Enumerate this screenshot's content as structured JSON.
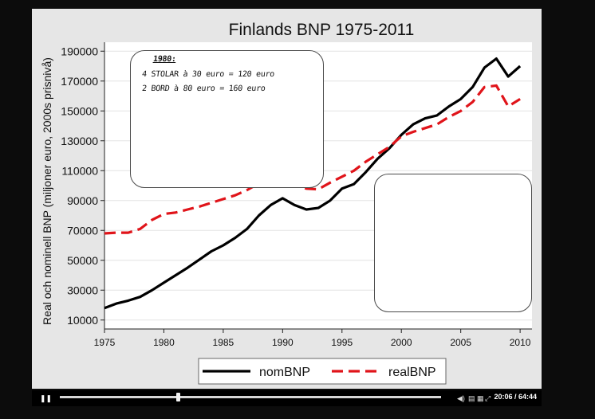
{
  "player": {
    "play_glyph": "❚❚",
    "progress": 0.31,
    "timecode": "20:06 / 64:44",
    "icons": [
      "volume-icon",
      "captions-icon",
      "settings-icon",
      "fullscreen-icon"
    ]
  },
  "annotation": {
    "lines": [
      "1980:",
      "4 STOLAR  à  30 euro  =  120 euro",
      "2 BORD  à  80 euro  =  160 euro"
    ]
  },
  "chart_data": {
    "type": "line",
    "title": "Finlands BNP 1975-2011",
    "xlabel": "",
    "ylabel": "Real och nominell BNP (miljoner euro, 2000s prisnivå)",
    "xlim": [
      1975,
      2011
    ],
    "ylim": [
      4000,
      196000
    ],
    "xticks": [
      1975,
      1980,
      1985,
      1990,
      1995,
      2000,
      2005,
      2010
    ],
    "yticks": [
      10000,
      30000,
      50000,
      70000,
      90000,
      110000,
      130000,
      150000,
      170000,
      190000
    ],
    "grid": true,
    "legend_position": "bottom",
    "x": [
      1975,
      1976,
      1977,
      1978,
      1979,
      1980,
      1981,
      1982,
      1983,
      1984,
      1985,
      1986,
      1987,
      1988,
      1989,
      1990,
      1991,
      1992,
      1993,
      1994,
      1995,
      1996,
      1997,
      1998,
      1999,
      2000,
      2001,
      2002,
      2003,
      2004,
      2005,
      2006,
      2007,
      2008,
      2009,
      2010
    ],
    "series": [
      {
        "name": "nomBNP",
        "color": "#000000",
        "style": "solid",
        "values": [
          18000,
          21000,
          23000,
          25500,
          30000,
          35000,
          40000,
          45000,
          50500,
          56000,
          60000,
          65000,
          71000,
          80000,
          87000,
          91500,
          87000,
          84000,
          85000,
          90000,
          98000,
          101000,
          109000,
          118000,
          125000,
          134000,
          141000,
          145000,
          147000,
          153000,
          158000,
          166000,
          179000,
          185000,
          173000,
          180000
        ]
      },
      {
        "name": "realBNP",
        "color": "#e0141a",
        "style": "dashed",
        "values": [
          68000,
          68500,
          68500,
          71000,
          77000,
          81000,
          82000,
          84000,
          86000,
          88500,
          91000,
          93500,
          97000,
          101500,
          107000,
          107500,
          101000,
          98000,
          97500,
          102000,
          106000,
          110000,
          116000,
          121000,
          126000,
          133000,
          136000,
          138500,
          141000,
          146000,
          150000,
          156000,
          166000,
          167000,
          153000,
          158000
        ]
      }
    ]
  }
}
